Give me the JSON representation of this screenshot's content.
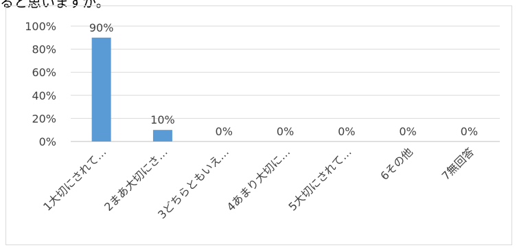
{
  "header": {
    "title_fragment": "ると思いますか。"
  },
  "chart_data": {
    "type": "bar",
    "categories": [
      "1大切にされて…",
      "2まあ大切にさ…",
      "3どちらともいえ…",
      "4あまり大切に…",
      "5大切にされて…",
      "6その他",
      "7無回答"
    ],
    "values": [
      90,
      10,
      0,
      0,
      0,
      0,
      0
    ],
    "data_labels": [
      "90%",
      "10%",
      "0%",
      "0%",
      "0%",
      "0%",
      "0%"
    ],
    "y_ticks": [
      "0%",
      "20%",
      "40%",
      "60%",
      "80%",
      "100%"
    ],
    "ylim": [
      0,
      100
    ],
    "grid": true,
    "legend": "none",
    "bar_color": "#5b9bd5",
    "grid_color": "#d9d9d9",
    "axis_color": "#bfbfbf"
  }
}
